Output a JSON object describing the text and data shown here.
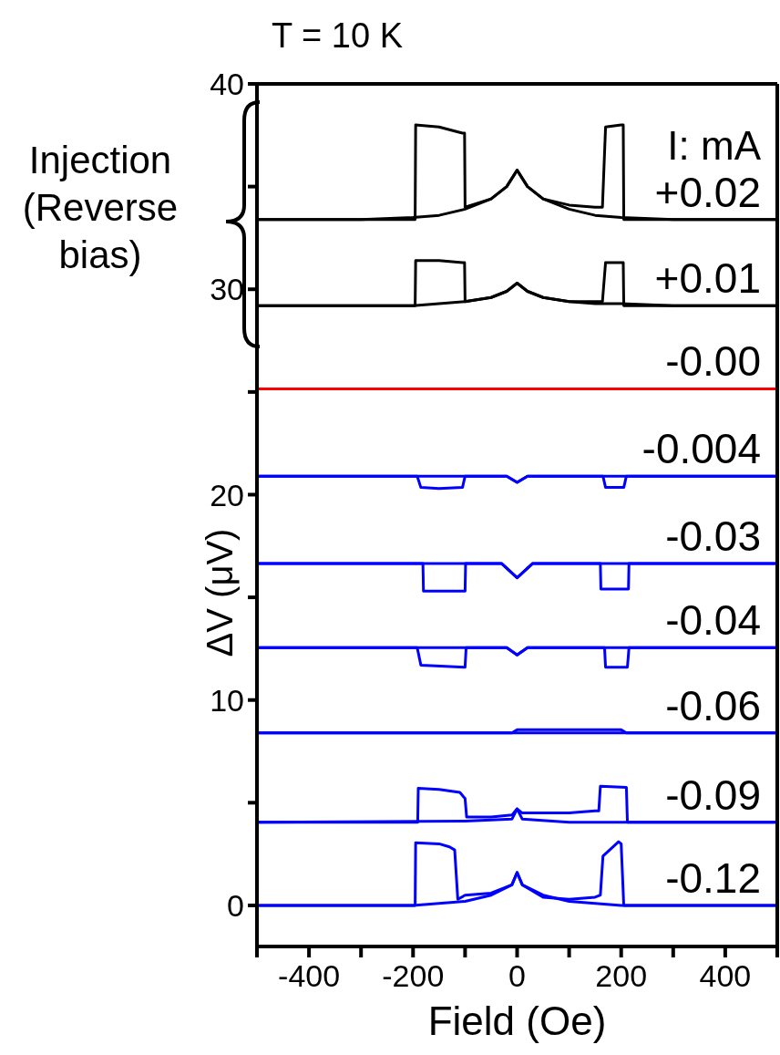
{
  "chart_data": {
    "type": "line",
    "title": "T = 10 K",
    "xlabel": "Field (Oe)",
    "ylabel": "ΔV (μV)",
    "legend_title": "I: mA",
    "annotations": [
      "Injection (Reverse bias)"
    ],
    "xlim": [
      -500,
      500
    ],
    "xticks": [
      {
        "value": -500,
        "label": null
      },
      -400,
      {
        "value": -300,
        "label": null
      },
      -200,
      {
        "value": -100,
        "label": null
      },
      0,
      {
        "value": 100,
        "label": null
      },
      200,
      {
        "value": 300,
        "label": null
      },
      400,
      {
        "value": 500,
        "label": null
      }
    ],
    "ylim": [
      -2,
      40
    ],
    "yticks": [
      0,
      {
        "value": 5,
        "label": null
      },
      10,
      {
        "value": 15,
        "label": null
      },
      20,
      {
        "value": 25,
        "label": null
      },
      30,
      {
        "value": 35,
        "label": null
      },
      40
    ],
    "series": [
      {
        "name": "+0.02",
        "color": "#000000",
        "x": [
          -500,
          -300,
          -196,
          -195,
          -150,
          -105,
          -101,
          -100,
          -50,
          -20,
          0,
          20,
          50,
          100,
          150,
          164,
          170,
          200,
          204,
          205,
          300,
          500
        ],
        "values": [
          33.4,
          33.4,
          33.4,
          38.0,
          37.9,
          37.6,
          37.6,
          34.0,
          34.4,
          35.0,
          35.8,
          35.0,
          34.4,
          34.1,
          34.0,
          34.0,
          37.9,
          38.0,
          38.0,
          33.4,
          33.4,
          33.4
        ]
      },
      {
        "color": "#000000",
        "x": [
          -500,
          -300,
          -200,
          -150,
          -100,
          -50,
          -20,
          0,
          20,
          50,
          100,
          150,
          200,
          300,
          500
        ],
        "values": [
          33.4,
          33.4,
          33.5,
          33.6,
          33.9,
          34.4,
          35.0,
          35.8,
          35.0,
          34.4,
          33.9,
          33.6,
          33.5,
          33.4,
          33.4
        ]
      },
      {
        "name": "+0.01",
        "color": "#000000",
        "x": [
          -500,
          -300,
          -196,
          -195,
          -150,
          -105,
          -101,
          -100,
          -50,
          -20,
          0,
          20,
          50,
          100,
          150,
          164,
          170,
          200,
          204,
          205,
          300,
          500
        ],
        "values": [
          29.2,
          29.2,
          29.2,
          31.4,
          31.4,
          31.3,
          31.3,
          29.4,
          29.6,
          29.9,
          30.3,
          29.9,
          29.6,
          29.4,
          29.4,
          29.4,
          31.3,
          31.3,
          31.3,
          29.2,
          29.2,
          29.2
        ]
      },
      {
        "color": "#000000",
        "x": [
          -500,
          -300,
          -200,
          -150,
          -100,
          -50,
          -20,
          0,
          20,
          50,
          100,
          150,
          200,
          300,
          500
        ],
        "values": [
          29.2,
          29.2,
          29.2,
          29.3,
          29.4,
          29.6,
          29.9,
          30.3,
          29.9,
          29.6,
          29.4,
          29.3,
          29.3,
          29.2,
          29.2
        ]
      },
      {
        "name": "-0.00",
        "color": "#ff0000",
        "x": [
          -500,
          500
        ],
        "values": [
          25.15,
          25.15
        ]
      },
      {
        "name": "-0.004",
        "color": "#0000ff",
        "x": [
          -500,
          -192,
          -185,
          -150,
          -105,
          -100,
          -20,
          0,
          20,
          165,
          170,
          205,
          210,
          500
        ],
        "values": [
          20.9,
          20.9,
          20.35,
          20.3,
          20.35,
          20.9,
          20.9,
          20.6,
          20.9,
          20.9,
          20.35,
          20.35,
          20.9,
          20.9
        ]
      },
      {
        "color": "#0000ff",
        "x": [
          -500,
          -20,
          0,
          20,
          500
        ],
        "values": [
          20.9,
          20.9,
          20.6,
          20.9,
          20.9
        ]
      },
      {
        "name": "-0.03",
        "color": "#0000ff",
        "x": [
          -500,
          -181,
          -180,
          -100,
          -99,
          -30,
          0,
          30,
          160,
          161,
          214,
          215,
          500
        ],
        "values": [
          16.65,
          16.65,
          15.3,
          15.3,
          16.65,
          16.65,
          15.95,
          16.65,
          16.65,
          15.4,
          15.4,
          16.65,
          16.65
        ]
      },
      {
        "color": "#0000ff",
        "x": [
          -500,
          -30,
          0,
          30,
          500
        ],
        "values": [
          16.65,
          16.65,
          15.95,
          16.65,
          16.65
        ]
      },
      {
        "name": "-0.04",
        "color": "#0000ff",
        "x": [
          -500,
          -192,
          -185,
          -100,
          -98,
          -20,
          0,
          20,
          168,
          170,
          212,
          215,
          500
        ],
        "values": [
          12.55,
          12.55,
          11.7,
          11.6,
          12.55,
          12.55,
          12.2,
          12.55,
          12.55,
          11.6,
          11.6,
          12.55,
          12.55
        ]
      },
      {
        "color": "#0000ff",
        "x": [
          -500,
          -20,
          0,
          20,
          500
        ],
        "values": [
          12.55,
          12.55,
          12.2,
          12.55,
          12.55
        ]
      },
      {
        "name": "-0.06",
        "color": "#0000ff",
        "x": [
          -500,
          -10,
          0,
          200,
          210,
          500
        ],
        "values": [
          8.4,
          8.4,
          8.55,
          8.55,
          8.4,
          8.4
        ]
      },
      {
        "color": "#0000ff",
        "x": [
          -500,
          500
        ],
        "values": [
          8.4,
          8.4
        ]
      },
      {
        "name": "-0.09",
        "color": "#0000ff",
        "x": [
          -500,
          -191,
          -190,
          -150,
          -110,
          -100,
          -97,
          -50,
          -10,
          0,
          10,
          100,
          150,
          157,
          160,
          210,
          212,
          500
        ],
        "values": [
          4.05,
          4.05,
          5.7,
          5.65,
          5.5,
          5.2,
          4.3,
          4.3,
          4.4,
          4.7,
          4.5,
          4.5,
          4.6,
          4.6,
          5.8,
          5.75,
          4.05,
          4.05
        ]
      },
      {
        "color": "#0000ff",
        "x": [
          -500,
          -100,
          -10,
          0,
          10,
          100,
          500
        ],
        "values": [
          4.05,
          4.1,
          4.2,
          4.7,
          4.2,
          4.05,
          4.05
        ]
      },
      {
        "name": "-0.12",
        "color": "#0000ff",
        "x": [
          -500,
          -196,
          -195,
          -150,
          -130,
          -120,
          -114,
          -100,
          -50,
          -10,
          0,
          10,
          50,
          100,
          150,
          160,
          165,
          195,
          200,
          205,
          500
        ],
        "values": [
          0,
          0,
          3.05,
          3.0,
          2.85,
          2.7,
          0.3,
          0.5,
          0.6,
          1.0,
          1.6,
          1.0,
          0.4,
          0.3,
          0.4,
          0.5,
          2.4,
          3.1,
          3.0,
          0,
          0
        ]
      },
      {
        "color": "#0000ff",
        "x": [
          -500,
          -200,
          -100,
          -50,
          -10,
          0,
          10,
          50,
          100,
          200,
          500
        ],
        "values": [
          0,
          0,
          0.2,
          0.5,
          1.0,
          1.6,
          1.0,
          0.5,
          0.2,
          0,
          0
        ]
      }
    ]
  }
}
